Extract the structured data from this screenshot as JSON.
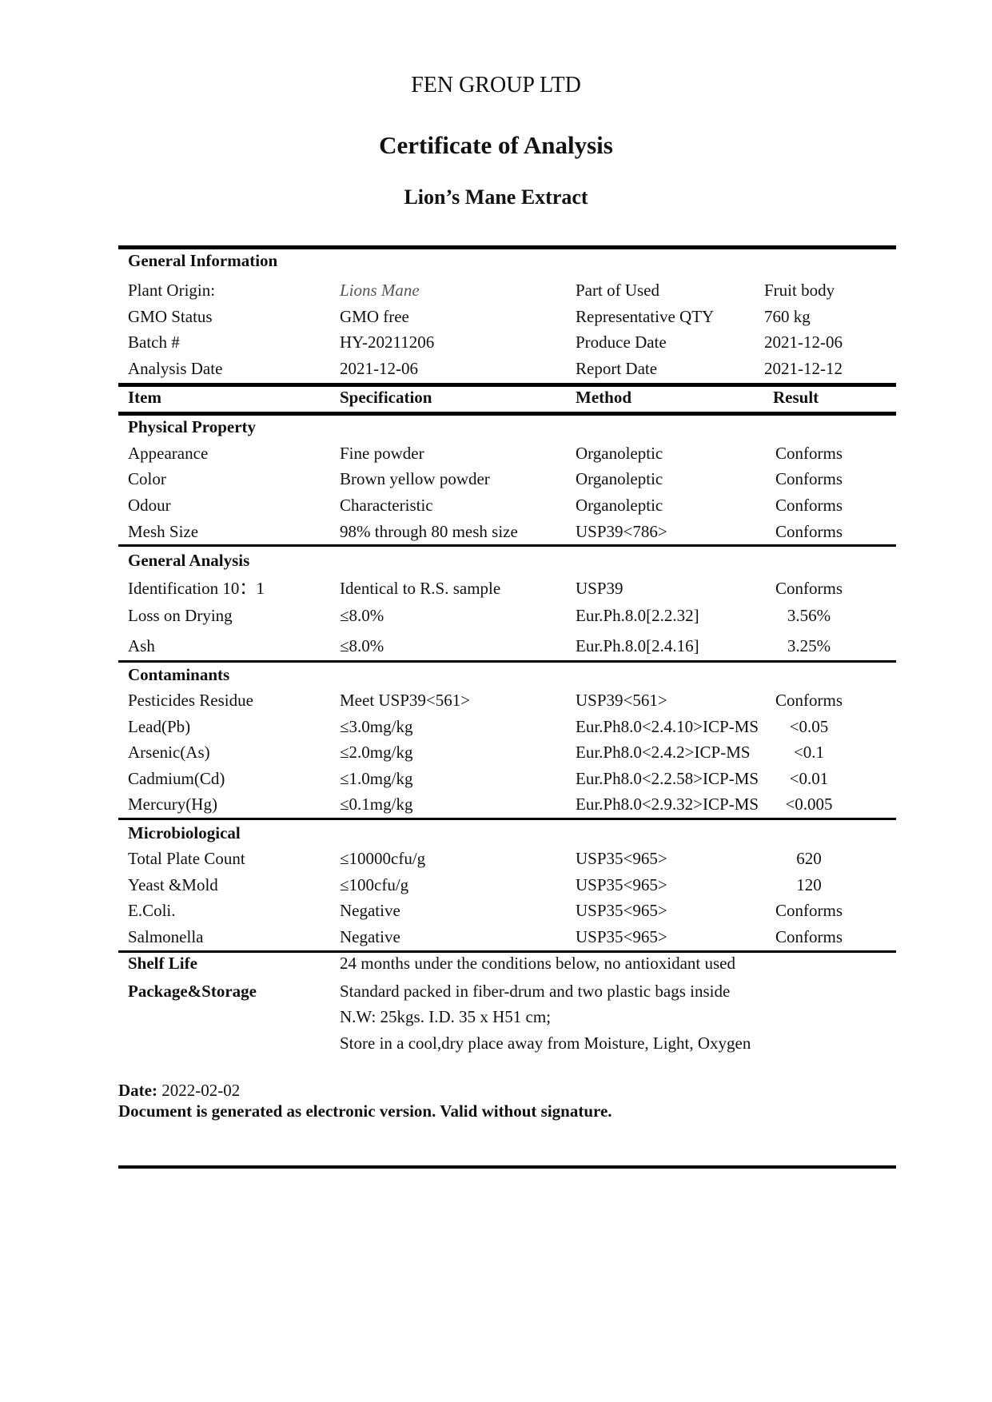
{
  "header": {
    "company": "FEN GROUP LTD",
    "title": "Certificate of Analysis",
    "product": "Lion’s Mane Extract"
  },
  "general_information": {
    "heading": "General Information",
    "rows": [
      [
        "Plant Origin:",
        "Lions Mane",
        "Part of Used",
        "Fruit body"
      ],
      [
        "GMO Status",
        "GMO free",
        "Representative QTY",
        "760 kg"
      ],
      [
        "Batch #",
        "HY-20211206",
        "Produce Date",
        "2021-12-06"
      ],
      [
        "Analysis Date",
        "2021-12-06",
        "Report Date",
        "2021-12-12"
      ]
    ]
  },
  "columns": [
    "Item",
    "Specification",
    "Method",
    "Result"
  ],
  "sections": [
    {
      "heading": "Physical Property",
      "rows": [
        [
          "Appearance",
          "Fine powder",
          "Organoleptic",
          "Conforms"
        ],
        [
          "Color",
          "Brown yellow powder",
          "Organoleptic",
          "Conforms"
        ],
        [
          "Odour",
          "Characteristic",
          "Organoleptic",
          "Conforms"
        ],
        [
          "Mesh Size",
          "98% through 80 mesh size",
          "USP39<786>",
          "Conforms"
        ]
      ]
    },
    {
      "heading": "General Analysis",
      "rows": [
        [
          "Identification 10：1",
          "Identical to R.S. sample",
          "USP39",
          "Conforms"
        ],
        [
          "Loss on Drying",
          "≤8.0%",
          "Eur.Ph.8.0[2.2.32]",
          "3.56%"
        ],
        [
          "Ash",
          "≤8.0%",
          "Eur.Ph.8.0[2.4.16]",
          "3.25%"
        ]
      ]
    },
    {
      "heading": "Contaminants",
      "rows": [
        [
          "Pesticides Residue",
          "Meet USP39<561>",
          "USP39<561>",
          "Conforms"
        ],
        [
          "Lead(Pb)",
          "≤3.0mg/kg",
          "Eur.Ph8.0<2.4.10>ICP-MS",
          "<0.05"
        ],
        [
          "Arsenic(As)",
          "≤2.0mg/kg",
          "Eur.Ph8.0<2.4.2>ICP-MS",
          "<0.1"
        ],
        [
          "Cadmium(Cd)",
          "≤1.0mg/kg",
          "Eur.Ph8.0<2.2.58>ICP-MS",
          "<0.01"
        ],
        [
          "Mercury(Hg)",
          "≤0.1mg/kg",
          "Eur.Ph8.0<2.9.32>ICP-MS",
          "<0.005"
        ]
      ]
    },
    {
      "heading": "Microbiological",
      "rows": [
        [
          "Total Plate Count",
          "≤10000cfu/g",
          "USP35<965>",
          "620"
        ],
        [
          "Yeast &Mold",
          "≤100cfu/g",
          "USP35<965>",
          "120"
        ],
        [
          "E.Coli.",
          "Negative",
          "USP35<965>",
          "Conforms"
        ],
        [
          "Salmonella",
          "Negative",
          "USP35<965>",
          "Conforms"
        ]
      ]
    }
  ],
  "shelf_life": {
    "label": "Shelf Life",
    "value": "24 months under the conditions below, no antioxidant used"
  },
  "package_storage": {
    "label": "Package&Storage",
    "lines": [
      "Standard packed in fiber-drum and two plastic bags inside",
      "N.W: 25kgs. I.D. 35 x H51 cm;",
      "Store in a cool,dry place away from Moisture, Light, Oxygen"
    ]
  },
  "footer": {
    "date_label": "Date:",
    "date_value": "2022-02-02",
    "note": "Document is generated as electronic version. Valid without signature."
  }
}
